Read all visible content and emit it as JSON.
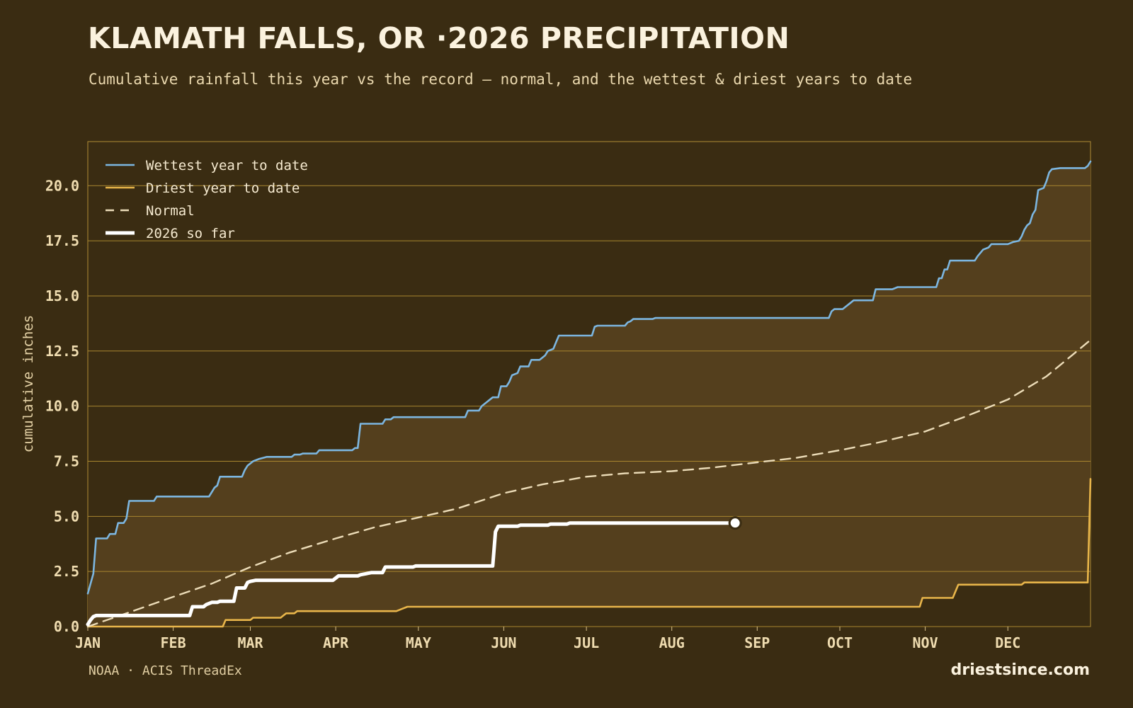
{
  "header": {
    "title": "KLAMATH FALLS, OR ·2026 PRECIPITATION",
    "subtitle": "Cumulative rainfall this year vs the record — normal, and the wettest & driest years to date"
  },
  "footer": {
    "source": "NOAA · ACIS ThreadEx",
    "brand": "driestsince.com"
  },
  "colors": {
    "background": "#3a2c12",
    "band_fill": "#543f1d",
    "grid": "#a8862f",
    "wettest": "#7cb6e0",
    "driest": "#e8b54a",
    "normal": "#ecdcb8",
    "current": "#ffffff"
  },
  "chart_data": {
    "type": "line",
    "ylabel": "cumulative inches",
    "xlabel": "",
    "ylim": [
      0,
      22
    ],
    "xlim": [
      "2026-01-01",
      "2026-12-31"
    ],
    "y_ticks": [
      "0.0",
      "2.5",
      "5.0",
      "7.5",
      "10.0",
      "12.5",
      "15.0",
      "17.5",
      "20.0"
    ],
    "x_ticks": [
      {
        "label": "JAN",
        "date": "2026-01-01"
      },
      {
        "label": "FEB",
        "date": "2026-02-01"
      },
      {
        "label": "MAR",
        "date": "2026-03-01"
      },
      {
        "label": "APR",
        "date": "2026-04-01"
      },
      {
        "label": "MAY",
        "date": "2026-05-01"
      },
      {
        "label": "JUN",
        "date": "2026-06-01"
      },
      {
        "label": "JUL",
        "date": "2026-07-01"
      },
      {
        "label": "AUG",
        "date": "2026-08-01"
      },
      {
        "label": "SEP",
        "date": "2026-09-01"
      },
      {
        "label": "OCT",
        "date": "2026-10-01"
      },
      {
        "label": "NOV",
        "date": "2026-11-01"
      },
      {
        "label": "DEC",
        "date": "2026-12-01"
      }
    ],
    "grid": "horizontal",
    "legend_position": "top-left",
    "shaded_band": "between driest and wettest year to date",
    "series": [
      {
        "name": "Wettest year to date",
        "style": "solid",
        "points": [
          [
            "2026-01-01",
            1.5
          ],
          [
            "2026-01-03",
            2.4
          ],
          [
            "2026-01-04",
            4.0
          ],
          [
            "2026-01-08",
            4.0
          ],
          [
            "2026-01-09",
            4.2
          ],
          [
            "2026-01-11",
            4.2
          ],
          [
            "2026-01-12",
            4.7
          ],
          [
            "2026-01-14",
            4.7
          ],
          [
            "2026-01-15",
            4.9
          ],
          [
            "2026-01-16",
            5.7
          ],
          [
            "2026-01-25",
            5.7
          ],
          [
            "2026-01-26",
            5.9
          ],
          [
            "2026-02-14",
            5.9
          ],
          [
            "2026-02-16",
            6.3
          ],
          [
            "2026-02-17",
            6.4
          ],
          [
            "2026-02-18",
            6.8
          ],
          [
            "2026-02-26",
            6.8
          ],
          [
            "2026-02-27",
            7.1
          ],
          [
            "2026-02-28",
            7.3
          ],
          [
            "2026-03-02",
            7.5
          ],
          [
            "2026-03-04",
            7.6
          ],
          [
            "2026-03-07",
            7.7
          ],
          [
            "2026-03-16",
            7.7
          ],
          [
            "2026-03-17",
            7.8
          ],
          [
            "2026-03-19",
            7.8
          ],
          [
            "2026-03-20",
            7.85
          ],
          [
            "2026-03-25",
            7.85
          ],
          [
            "2026-03-26",
            8.0
          ],
          [
            "2026-04-07",
            8.0
          ],
          [
            "2026-04-08",
            8.1
          ],
          [
            "2026-04-09",
            8.1
          ],
          [
            "2026-04-10",
            9.2
          ],
          [
            "2026-04-18",
            9.2
          ],
          [
            "2026-04-19",
            9.4
          ],
          [
            "2026-04-21",
            9.4
          ],
          [
            "2026-04-22",
            9.5
          ],
          [
            "2026-05-18",
            9.5
          ],
          [
            "2026-05-19",
            9.8
          ],
          [
            "2026-05-23",
            9.8
          ],
          [
            "2026-05-24",
            10.0
          ],
          [
            "2026-05-26",
            10.2
          ],
          [
            "2026-05-28",
            10.4
          ],
          [
            "2026-05-30",
            10.4
          ],
          [
            "2026-05-31",
            10.9
          ],
          [
            "2026-06-02",
            10.9
          ],
          [
            "2026-06-03",
            11.1
          ],
          [
            "2026-06-04",
            11.4
          ],
          [
            "2026-06-06",
            11.5
          ],
          [
            "2026-06-07",
            11.8
          ],
          [
            "2026-06-10",
            11.8
          ],
          [
            "2026-06-11",
            12.1
          ],
          [
            "2026-06-14",
            12.1
          ],
          [
            "2026-06-16",
            12.3
          ],
          [
            "2026-06-17",
            12.5
          ],
          [
            "2026-06-19",
            12.6
          ],
          [
            "2026-06-20",
            12.9
          ],
          [
            "2026-06-21",
            13.2
          ],
          [
            "2026-07-03",
            13.2
          ],
          [
            "2026-07-04",
            13.6
          ],
          [
            "2026-07-05",
            13.65
          ],
          [
            "2026-07-15",
            13.65
          ],
          [
            "2026-07-16",
            13.8
          ],
          [
            "2026-07-17",
            13.85
          ],
          [
            "2026-07-18",
            13.95
          ],
          [
            "2026-07-25",
            13.95
          ],
          [
            "2026-07-26",
            14.0
          ],
          [
            "2026-09-27",
            14.0
          ],
          [
            "2026-09-28",
            14.3
          ],
          [
            "2026-09-29",
            14.4
          ],
          [
            "2026-10-02",
            14.4
          ],
          [
            "2026-10-05",
            14.7
          ],
          [
            "2026-10-06",
            14.8
          ],
          [
            "2026-10-13",
            14.8
          ],
          [
            "2026-10-14",
            15.3
          ],
          [
            "2026-10-20",
            15.3
          ],
          [
            "2026-10-21",
            15.35
          ],
          [
            "2026-10-22",
            15.4
          ],
          [
            "2026-11-05",
            15.4
          ],
          [
            "2026-11-06",
            15.8
          ],
          [
            "2026-11-07",
            15.8
          ],
          [
            "2026-11-08",
            16.2
          ],
          [
            "2026-11-09",
            16.2
          ],
          [
            "2026-11-10",
            16.6
          ],
          [
            "2026-11-19",
            16.6
          ],
          [
            "2026-11-20",
            16.8
          ],
          [
            "2026-11-22",
            17.1
          ],
          [
            "2026-11-24",
            17.2
          ],
          [
            "2026-11-25",
            17.35
          ],
          [
            "2026-12-01",
            17.35
          ],
          [
            "2026-12-03",
            17.45
          ],
          [
            "2026-12-05",
            17.5
          ],
          [
            "2026-12-06",
            17.7
          ],
          [
            "2026-12-07",
            18.0
          ],
          [
            "2026-12-08",
            18.2
          ],
          [
            "2026-12-09",
            18.3
          ],
          [
            "2026-12-10",
            18.7
          ],
          [
            "2026-12-11",
            18.9
          ],
          [
            "2026-12-12",
            19.8
          ],
          [
            "2026-12-14",
            19.9
          ],
          [
            "2026-12-15",
            20.2
          ],
          [
            "2026-12-16",
            20.6
          ],
          [
            "2026-12-17",
            20.75
          ],
          [
            "2026-12-20",
            20.8
          ],
          [
            "2026-12-29",
            20.8
          ],
          [
            "2026-12-30",
            20.9
          ],
          [
            "2026-12-31",
            21.1
          ]
        ]
      },
      {
        "name": "Driest year to date",
        "style": "solid",
        "points": [
          [
            "2026-01-01",
            0.0
          ],
          [
            "2026-02-19",
            0.0
          ],
          [
            "2026-02-20",
            0.3
          ],
          [
            "2026-03-01",
            0.3
          ],
          [
            "2026-03-02",
            0.4
          ],
          [
            "2026-03-12",
            0.4
          ],
          [
            "2026-03-13",
            0.5
          ],
          [
            "2026-03-14",
            0.6
          ],
          [
            "2026-03-17",
            0.6
          ],
          [
            "2026-03-18",
            0.7
          ],
          [
            "2026-04-23",
            0.7
          ],
          [
            "2026-04-25",
            0.8
          ],
          [
            "2026-04-27",
            0.9
          ],
          [
            "2026-10-30",
            0.9
          ],
          [
            "2026-10-31",
            1.3
          ],
          [
            "2026-11-11",
            1.3
          ],
          [
            "2026-11-13",
            1.9
          ],
          [
            "2026-12-06",
            1.9
          ],
          [
            "2026-12-07",
            2.0
          ],
          [
            "2026-12-30",
            2.0
          ],
          [
            "2026-12-31",
            6.7
          ]
        ]
      },
      {
        "name": "Normal",
        "style": "dashed",
        "points": [
          [
            "2026-01-01",
            0.0
          ],
          [
            "2026-01-15",
            0.6
          ],
          [
            "2026-02-01",
            1.35
          ],
          [
            "2026-02-15",
            1.95
          ],
          [
            "2026-03-01",
            2.7
          ],
          [
            "2026-03-15",
            3.35
          ],
          [
            "2026-04-01",
            4.0
          ],
          [
            "2026-04-15",
            4.5
          ],
          [
            "2026-05-01",
            4.95
          ],
          [
            "2026-05-15",
            5.35
          ],
          [
            "2026-06-01",
            6.05
          ],
          [
            "2026-06-15",
            6.45
          ],
          [
            "2026-07-01",
            6.8
          ],
          [
            "2026-07-15",
            6.95
          ],
          [
            "2026-08-01",
            7.05
          ],
          [
            "2026-08-15",
            7.2
          ],
          [
            "2026-09-01",
            7.45
          ],
          [
            "2026-09-15",
            7.65
          ],
          [
            "2026-10-01",
            8.0
          ],
          [
            "2026-10-15",
            8.35
          ],
          [
            "2026-11-01",
            8.85
          ],
          [
            "2026-11-15",
            9.5
          ],
          [
            "2026-12-01",
            10.3
          ],
          [
            "2026-12-15",
            11.35
          ],
          [
            "2026-12-31",
            13.0
          ]
        ]
      },
      {
        "name": "2026 so far",
        "style": "bold",
        "end_marker": true,
        "points": [
          [
            "2026-01-01",
            0.1
          ],
          [
            "2026-01-02",
            0.3
          ],
          [
            "2026-01-03",
            0.45
          ],
          [
            "2026-01-04",
            0.5
          ],
          [
            "2026-02-07",
            0.5
          ],
          [
            "2026-02-08",
            0.9
          ],
          [
            "2026-02-12",
            0.9
          ],
          [
            "2026-02-13",
            1.0
          ],
          [
            "2026-02-15",
            1.1
          ],
          [
            "2026-02-17",
            1.1
          ],
          [
            "2026-02-18",
            1.15
          ],
          [
            "2026-02-23",
            1.15
          ],
          [
            "2026-02-24",
            1.75
          ],
          [
            "2026-02-27",
            1.75
          ],
          [
            "2026-02-28",
            2.0
          ],
          [
            "2026-03-01",
            2.05
          ],
          [
            "2026-03-03",
            2.1
          ],
          [
            "2026-03-31",
            2.1
          ],
          [
            "2026-04-01",
            2.2
          ],
          [
            "2026-04-02",
            2.3
          ],
          [
            "2026-04-09",
            2.3
          ],
          [
            "2026-04-10",
            2.35
          ],
          [
            "2026-04-12",
            2.4
          ],
          [
            "2026-04-14",
            2.45
          ],
          [
            "2026-04-18",
            2.45
          ],
          [
            "2026-04-19",
            2.7
          ],
          [
            "2026-04-29",
            2.7
          ],
          [
            "2026-04-30",
            2.75
          ],
          [
            "2026-05-28",
            2.75
          ],
          [
            "2026-05-29",
            4.3
          ],
          [
            "2026-05-30",
            4.55
          ],
          [
            "2026-06-06",
            4.55
          ],
          [
            "2026-06-07",
            4.6
          ],
          [
            "2026-06-17",
            4.6
          ],
          [
            "2026-06-18",
            4.65
          ],
          [
            "2026-06-24",
            4.65
          ],
          [
            "2026-06-25",
            4.7
          ],
          [
            "2026-08-24",
            4.7
          ]
        ]
      }
    ]
  }
}
